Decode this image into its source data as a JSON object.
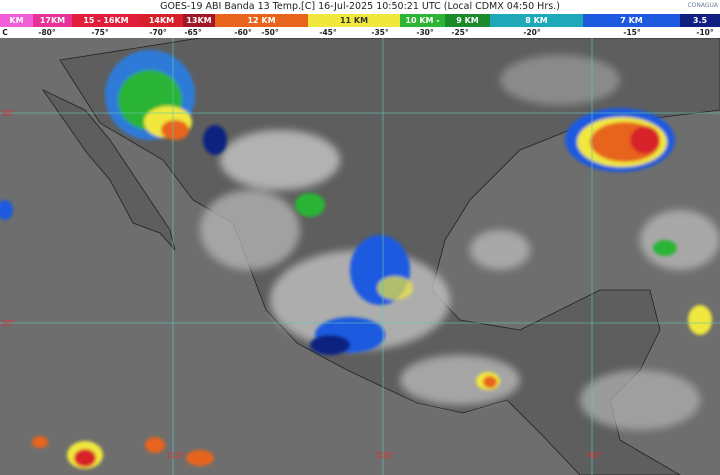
{
  "header": {
    "title": "GOES-19 ABI Banda 13 Temp.[C] 16-Jul-2025 10:50:21 UTC (Local CDMX  04:50 Hrs.)",
    "logo": "CONAGUA"
  },
  "color_scale": [
    {
      "label": "KM",
      "color": "#f05fd8"
    },
    {
      "label": "17KM",
      "color": "#e8329a"
    },
    {
      "label": "15 - 16KM",
      "color": "#e01e3c"
    },
    {
      "label": "14KM",
      "color": "#d8202a"
    },
    {
      "label": "13KM",
      "color": "#a01828"
    },
    {
      "label": "12 KM",
      "color": "#e8641c"
    },
    {
      "label": "11 KM",
      "color": "#f0e83c"
    },
    {
      "label": "10 KM -",
      "color": "#2cb434"
    },
    {
      "label": "9 KM",
      "color": "#1a8a2a"
    },
    {
      "label": "8 KM",
      "color": "#1ea8b8"
    },
    {
      "label": "7 KM",
      "color": "#1e5ae0"
    },
    {
      "label": "3.5",
      "color": "#102080"
    }
  ],
  "temperatures": [
    "C",
    "-80°",
    "-75°",
    "-70°",
    "-65°",
    "-60°",
    "-50°",
    "-45°",
    "-35°",
    "-30°",
    "-25°",
    "-20°",
    "-15°",
    "-10°"
  ],
  "grid": {
    "latitudes": [
      "30°",
      "20°"
    ],
    "longitudes": [
      "110°",
      "100°",
      "90°"
    ],
    "line_color": "#5fc8b8"
  }
}
